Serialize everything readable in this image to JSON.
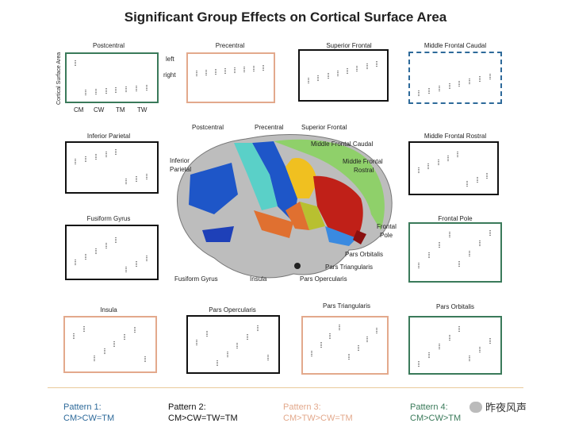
{
  "title": "Significant Group Effects on Cortical Surface Area",
  "y_axis_label": "Cortical Surface Area",
  "x_ticks": [
    "CM",
    "CW",
    "TM",
    "TW"
  ],
  "legend_left": "left",
  "legend_right": "right",
  "panels": {
    "postcentral": "Postcentral",
    "precentral": "Precentral",
    "superior_frontal": "Superior Frontal",
    "middle_frontal_caudal": "Middle Frontal Caudal",
    "inferior_parietal": "Inferior Parietal",
    "middle_frontal_rostral": "Middle Frontal Rostral",
    "fusiform_gyrus": "Fusiform Gyrus",
    "frontal_pole": "Frontal Pole",
    "insula": "Insula",
    "pars_opercularis": "Pars Opercularis",
    "pars_triangularis": "Pars Triangularis",
    "pars_orbitalis": "Pars Orbitalis"
  },
  "brain_labels": {
    "postcentral": "Postcentral",
    "precentral": "Precentral",
    "superior_frontal": "Superior Frontal",
    "middle_frontal_caudal": "Middle Frontal Caudal",
    "middle_frontal_rostral_1": "Middle Frontal",
    "middle_frontal_rostral_2": "Rostral",
    "inferior_parietal_1": "Inferior",
    "inferior_parietal_2": "Parietal",
    "frontal_pole_1": "Frontal",
    "frontal_pole_2": "Pole",
    "pars_orbitalis": "Pars Orbitalis",
    "pars_triangularis": "Pars Triangularis",
    "pars_opercularis": "Pars Opercularis",
    "insula": "Insula",
    "fusiform_gyrus": "Fusiform Gyrus"
  },
  "patterns": [
    {
      "name": "Pattern 1:",
      "rule": "CM>CW=TM",
      "color": "#2e6a9a"
    },
    {
      "name": "Pattern 2:",
      "rule": "CM>CW=TW=TM",
      "color": "#111111"
    },
    {
      "name": "Pattern 3:",
      "rule": "CM>TW>CW=TM",
      "color": "#e3a98c"
    },
    {
      "name": "Pattern 4:",
      "rule": "CM>CW>TM",
      "color": "#3a7a5a"
    }
  ],
  "watermark": "昨夜风声",
  "colors": {
    "pattern1": "#2e6a9a",
    "pattern2": "#111111",
    "pattern3": "#e3a98c",
    "pattern4": "#3a7a5a"
  }
}
